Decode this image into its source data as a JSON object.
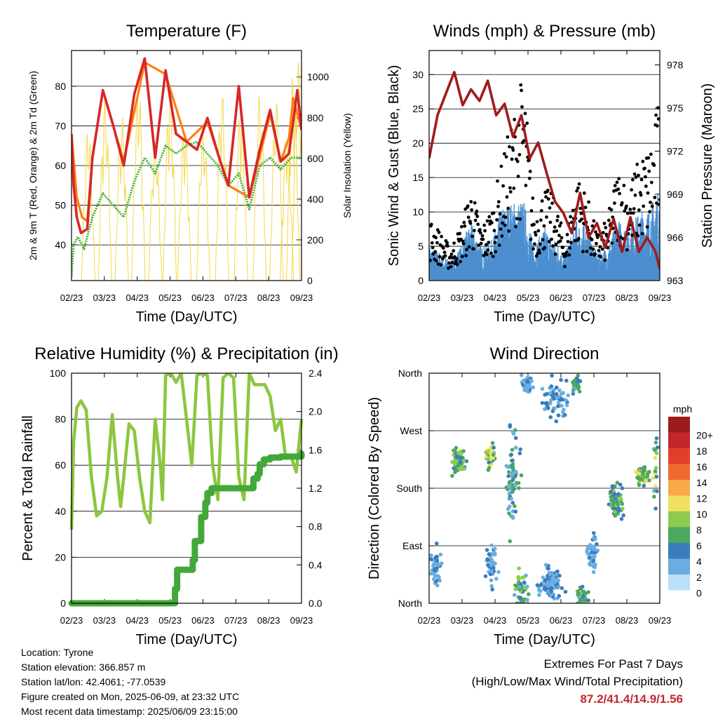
{
  "chart_data": [
    {
      "type": "line",
      "title": "Temperature (F)",
      "xlabel": "Time (Day/UTC)",
      "ylabel": "2m & 9m T (Red, Orange) & 2m Td (Green)",
      "ylabel_right": "Solar Insolation (Yellow)",
      "xticks": [
        "02/23",
        "03/23",
        "04/23",
        "05/23",
        "06/23",
        "07/23",
        "08/23",
        "09/23"
      ],
      "ylim": [
        31,
        89
      ],
      "yticks": [
        40,
        50,
        60,
        70,
        80
      ],
      "ylim_right": [
        0,
        1130
      ],
      "yticks_right": [
        0,
        200,
        400,
        600,
        800,
        1000
      ],
      "grid": true,
      "series": [
        {
          "name": "2m T",
          "axis": "left",
          "color": "#d62728",
          "x": [
            0,
            0.1,
            0.25,
            0.45,
            0.75,
            1.0,
            1.5,
            2.0,
            2.5,
            3.0,
            3.5,
            4.0,
            4.5,
            5.0,
            5.5,
            6.0,
            6.5,
            7.0,
            7.5,
            8.0,
            8.5,
            9.0,
            9.5,
            10.0,
            10.4,
            10.8,
            11.0
          ],
          "y": [
            68,
            55,
            47,
            43,
            44,
            62,
            79,
            70,
            60,
            78,
            87,
            62,
            84,
            68,
            66,
            64,
            72,
            63,
            55,
            80,
            52,
            64,
            74,
            61,
            63,
            79,
            69
          ]
        },
        {
          "name": "9m T",
          "axis": "left",
          "color": "#ff7f0e",
          "x": [
            0,
            0.25,
            0.5,
            0.75,
            1.0,
            1.5,
            2.5,
            3.5,
            4.5,
            5.5,
            6.5,
            7.5,
            8.5,
            9.5,
            10.0,
            10.4,
            10.6,
            10.8,
            11.0
          ],
          "y": [
            68,
            52,
            47,
            46,
            62,
            79,
            61,
            86,
            83,
            66,
            71,
            55,
            52,
            73,
            61,
            67,
            77,
            73,
            69
          ]
        },
        {
          "name": "2m Td",
          "axis": "left",
          "color": "#4caf3a",
          "x": [
            0,
            0.1,
            0.3,
            0.6,
            1.0,
            1.5,
            2.0,
            2.5,
            3.0,
            3.5,
            4.0,
            4.5,
            5.0,
            5.5,
            6.0,
            6.5,
            7.0,
            7.5,
            8.0,
            8.5,
            9.0,
            9.5,
            10.0,
            10.5,
            11.0
          ],
          "y": [
            32,
            40,
            42,
            39,
            47,
            53,
            50,
            47,
            56,
            62,
            58,
            65,
            63,
            65,
            66,
            63,
            60,
            55,
            58,
            49,
            60,
            62,
            59,
            62,
            62
          ]
        },
        {
          "name": "Solar Insolation",
          "axis": "right",
          "color": "#f5d742",
          "peaks_x": [
            0.8,
            1.6,
            2.4,
            3.2,
            4.0,
            4.7,
            5.4,
            6.3,
            7.2,
            8.1,
            9.0,
            9.8,
            10.3,
            10.6,
            10.85
          ],
          "peaks": [
            760,
            900,
            820,
            980,
            700,
            960,
            780,
            780,
            940,
            880,
            940,
            900,
            760,
            1020,
            1090
          ]
        }
      ]
    },
    {
      "type": "scatter",
      "title": "Winds (mph) & Pressure (mb)",
      "xlabel": "Time (Day/UTC)",
      "ylabel": "Sonic Wind & Gust (Blue, Black)",
      "ylabel_right": "Station Pressure (Maroon)",
      "xticks": [
        "02/23",
        "03/23",
        "04/23",
        "05/23",
        "06/23",
        "07/23",
        "08/23",
        "09/23"
      ],
      "ylim": [
        0,
        33.5
      ],
      "yticks": [
        0,
        5,
        10,
        15,
        20,
        25,
        30
      ],
      "ylim_right": [
        963,
        979
      ],
      "yticks_right": [
        963,
        966,
        969,
        972,
        975,
        978
      ],
      "grid": true,
      "gust_peak_x": [
        0.15,
        1.0,
        1.5,
        2.0,
        2.5,
        3.0,
        3.5,
        4.5,
        5.0,
        5.5,
        6.0,
        6.5,
        7.0,
        7.5,
        8.0,
        8.5,
        9.0,
        9.5,
        10.0,
        10.5,
        10.9
      ],
      "gust_peak": [
        9,
        5,
        8,
        14,
        8,
        11,
        18,
        31,
        10,
        14,
        12,
        6,
        16,
        13,
        7,
        9,
        17,
        14,
        18,
        20,
        26
      ],
      "series": [
        {
          "name": "Station Pressure",
          "axis": "right",
          "color": "#a01b1b",
          "x": [
            0,
            0.4,
            0.8,
            1.2,
            1.6,
            2.0,
            2.4,
            2.8,
            3.2,
            3.6,
            4.0,
            4.4,
            4.8,
            5.2,
            5.6,
            6.0,
            6.4,
            6.8,
            7.2,
            7.6,
            8.0,
            8.4,
            8.8,
            9.2,
            9.6,
            10.0,
            10.4,
            10.8,
            11.0
          ],
          "y": [
            971.5,
            974.5,
            976,
            977.5,
            975.2,
            976.3,
            975.5,
            976.9,
            974.5,
            975.3,
            973,
            974.5,
            971.5,
            972.6,
            970.5,
            968.5,
            967.7,
            966.3,
            969.1,
            966,
            967,
            965.3,
            967.3,
            965,
            967.4,
            965,
            966,
            965,
            963.8
          ]
        },
        {
          "name": "Sonic Wind",
          "axis": "left",
          "color": "#4b8fd0",
          "peaks_x": [
            0.15,
            1.0,
            1.5,
            2.0,
            2.5,
            3.0,
            3.5,
            4.5,
            5.0,
            5.5,
            6.0,
            6.5,
            7.0,
            7.5,
            8.0,
            8.5,
            9.0,
            9.5,
            10.0,
            10.5,
            10.9
          ],
          "peaks": [
            5,
            3,
            5,
            9,
            5,
            6,
            11,
            12,
            5,
            8,
            6,
            4,
            9,
            8,
            4,
            5,
            9,
            8,
            10,
            11,
            13
          ]
        }
      ]
    },
    {
      "type": "line",
      "title": "Relative Humidity (%) & Precipitation (in)",
      "xlabel": "Time (Day/UTC)",
      "ylabel": "Percent & Total Rainfall",
      "xticks": [
        "02/23",
        "03/23",
        "04/23",
        "05/23",
        "06/23",
        "07/23",
        "08/23",
        "09/23"
      ],
      "ylim": [
        0,
        100
      ],
      "yticks": [
        0,
        20,
        40,
        60,
        80,
        100
      ],
      "ylim_right": [
        0,
        2.4
      ],
      "yticks_right": [
        "0.0",
        "0.4",
        "0.8",
        "1.2",
        "1.6",
        "2.0",
        "2.4"
      ],
      "grid": true,
      "series": [
        {
          "name": "Relative Humidity",
          "axis": "left",
          "color": "#8cc63f",
          "x": [
            0,
            0.1,
            0.25,
            0.45,
            0.7,
            0.95,
            1.2,
            1.45,
            1.7,
            1.95,
            2.2,
            2.35,
            2.5,
            2.75,
            3.0,
            3.25,
            3.5,
            3.75,
            4.0,
            4.25,
            4.35,
            4.5,
            4.75,
            5.0,
            5.25,
            5.5,
            5.75,
            6.0,
            6.25,
            6.5,
            6.75,
            7.0,
            7.25,
            7.5,
            7.75,
            8.0,
            8.25,
            8.5,
            8.75,
            9.0,
            9.25,
            9.5,
            9.75,
            10.0,
            10.25,
            10.5,
            10.75,
            11.0
          ],
          "y": [
            32,
            70,
            85,
            88,
            84,
            55,
            38,
            40,
            55,
            82,
            55,
            42,
            55,
            78,
            75,
            55,
            40,
            35,
            80,
            60,
            45,
            99,
            100,
            96,
            100,
            80,
            60,
            99,
            100,
            99,
            60,
            45,
            98,
            100,
            98,
            55,
            45,
            100,
            95,
            95,
            95,
            90,
            75,
            80,
            63,
            64,
            57,
            80
          ]
        },
        {
          "name": "Total Precipitation",
          "axis": "right",
          "color": "#43a83a",
          "x": [
            0,
            4.9,
            4.95,
            5.05,
            5.7,
            5.8,
            5.9,
            6.1,
            6.2,
            6.4,
            6.5,
            6.7,
            8.6,
            8.7,
            8.9,
            9.0,
            9.2,
            9.5,
            10.0,
            11.0
          ],
          "y": [
            0,
            0,
            0.15,
            0.35,
            0.35,
            0.45,
            0.65,
            0.65,
            0.9,
            1.05,
            1.15,
            1.2,
            1.2,
            1.3,
            1.35,
            1.45,
            1.5,
            1.52,
            1.53,
            1.56
          ]
        }
      ]
    },
    {
      "type": "scatter",
      "title": "Wind Direction",
      "xlabel": "Time (Day/UTC)",
      "ylabel": "Direction (Colored By Speed)",
      "xticks": [
        "02/23",
        "03/23",
        "04/23",
        "05/23",
        "06/23",
        "07/23",
        "08/23",
        "09/23"
      ],
      "yticks": [
        "North",
        "East",
        "South",
        "West",
        "North"
      ],
      "ylim": [
        0,
        360
      ],
      "grid": true,
      "colorbar": {
        "unit": "mph",
        "labels": [
          "20+",
          "18",
          "16",
          "14",
          "12",
          "10",
          "8",
          "6",
          "4",
          "2",
          "0"
        ],
        "colors": [
          "#9e1b1b",
          "#c4262d",
          "#e0402a",
          "#f06a2e",
          "#f8a94a",
          "#f0e060",
          "#8ccb4f",
          "#4aa860",
          "#3a7dbf",
          "#6aaee0",
          "#b8e0f7"
        ]
      },
      "clusters": [
        {
          "x": 0.3,
          "y": 60,
          "spread": [
            0.35,
            40
          ],
          "n": 40,
          "speed": [
            1,
            4
          ]
        },
        {
          "x": 1.4,
          "y": 220,
          "spread": [
            0.45,
            30
          ],
          "n": 70,
          "speed": [
            3,
            9
          ]
        },
        {
          "x": 2.9,
          "y": 230,
          "spread": [
            0.3,
            25
          ],
          "n": 60,
          "speed": [
            4,
            11
          ]
        },
        {
          "x": 3.0,
          "y": 60,
          "spread": [
            0.4,
            45
          ],
          "n": 40,
          "speed": [
            1,
            4
          ]
        },
        {
          "x": 4.0,
          "y": 200,
          "spread": [
            0.5,
            120
          ],
          "n": 70,
          "speed": [
            1,
            7
          ]
        },
        {
          "x": 4.4,
          "y": 20,
          "spread": [
            0.4,
            40
          ],
          "n": 50,
          "speed": [
            1,
            8
          ]
        },
        {
          "x": 4.7,
          "y": 340,
          "spread": [
            0.4,
            25
          ],
          "n": 30,
          "speed": [
            1,
            4
          ]
        },
        {
          "x": 5.8,
          "y": 30,
          "spread": [
            0.8,
            40
          ],
          "n": 80,
          "speed": [
            1,
            5
          ]
        },
        {
          "x": 6.0,
          "y": 320,
          "spread": [
            0.9,
            40
          ],
          "n": 60,
          "speed": [
            1,
            5
          ]
        },
        {
          "x": 7.3,
          "y": 10,
          "spread": [
            0.4,
            25
          ],
          "n": 50,
          "speed": [
            2,
            8
          ]
        },
        {
          "x": 7.0,
          "y": 340,
          "spread": [
            0.3,
            25
          ],
          "n": 30,
          "speed": [
            2,
            7
          ]
        },
        {
          "x": 7.8,
          "y": 80,
          "spread": [
            0.4,
            40
          ],
          "n": 50,
          "speed": [
            1,
            5
          ]
        },
        {
          "x": 8.9,
          "y": 160,
          "spread": [
            0.5,
            40
          ],
          "n": 70,
          "speed": [
            3,
            8
          ]
        },
        {
          "x": 10.2,
          "y": 200,
          "spread": [
            0.4,
            20
          ],
          "n": 60,
          "speed": [
            4,
            10
          ]
        },
        {
          "x": 10.8,
          "y": 220,
          "spread": [
            0.2,
            120
          ],
          "n": 20,
          "speed": [
            2,
            12
          ]
        }
      ]
    }
  ],
  "info": {
    "location": "Location: Tyrone",
    "elevation": "Station elevation: 366.857 m",
    "latlon": "Station lat/lon: 42.4061; -77.0539",
    "created": "Figure created on Mon, 2025-06-09, at 23:32 UTC",
    "recent": "Most recent data timestamp: 2025/06/09 23:15:00"
  },
  "extremes": {
    "title": "Extremes For Past 7 Days",
    "subtitle": "(High/Low/Max Wind/Total Precipitation)",
    "values": "87.2/41.4/14.9/1.56"
  }
}
